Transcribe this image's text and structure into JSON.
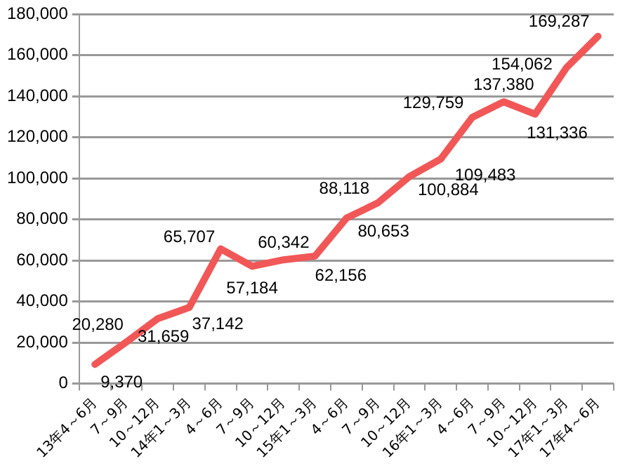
{
  "chart_data": {
    "type": "line",
    "categories": [
      "13年4～6月",
      "7～9月",
      "10～12月",
      "14年1～3月",
      "4～6月",
      "7～9月",
      "10～12月",
      "15年1～3月",
      "4～6月",
      "7～9月",
      "10～12月",
      "16年1～3月",
      "4～6月",
      "7～9月",
      "10～12月",
      "17年1～3月",
      "17年4～6月"
    ],
    "series": [
      {
        "color": "#f25757",
        "values": [
          9370,
          20280,
          31659,
          37142,
          65707,
          57184,
          60342,
          62156,
          80653,
          88118,
          100884,
          109483,
          129759,
          137380,
          131336,
          154062,
          169287
        ],
        "value_labels": [
          "9,370",
          "20,280",
          "31,659",
          "37,142",
          "65,707",
          "57,184",
          "60,342",
          "62,156",
          "80,653",
          "88,118",
          "100,884",
          "109,483",
          "129,759",
          "137,380",
          "131,336",
          "154,062",
          "169,287"
        ]
      }
    ],
    "ylim": [
      0,
      180000
    ],
    "yticks": [
      0,
      {
        "value": 20000,
        "label": "20,000"
      },
      {
        "value": 40000,
        "label": "40,000"
      },
      {
        "value": 60000,
        "label": "60,000"
      },
      {
        "value": 80000,
        "label": "80,000"
      },
      {
        "value": 100000,
        "label": "100,000"
      },
      {
        "value": 120000,
        "label": "120,000"
      },
      {
        "value": 140000,
        "label": "140,000"
      },
      {
        "value": 160000,
        "label": "160,000"
      },
      {
        "value": 180000,
        "label": "180,000"
      }
    ],
    "grid": "y",
    "legend": false,
    "marker": "none",
    "line_style": "solid"
  }
}
